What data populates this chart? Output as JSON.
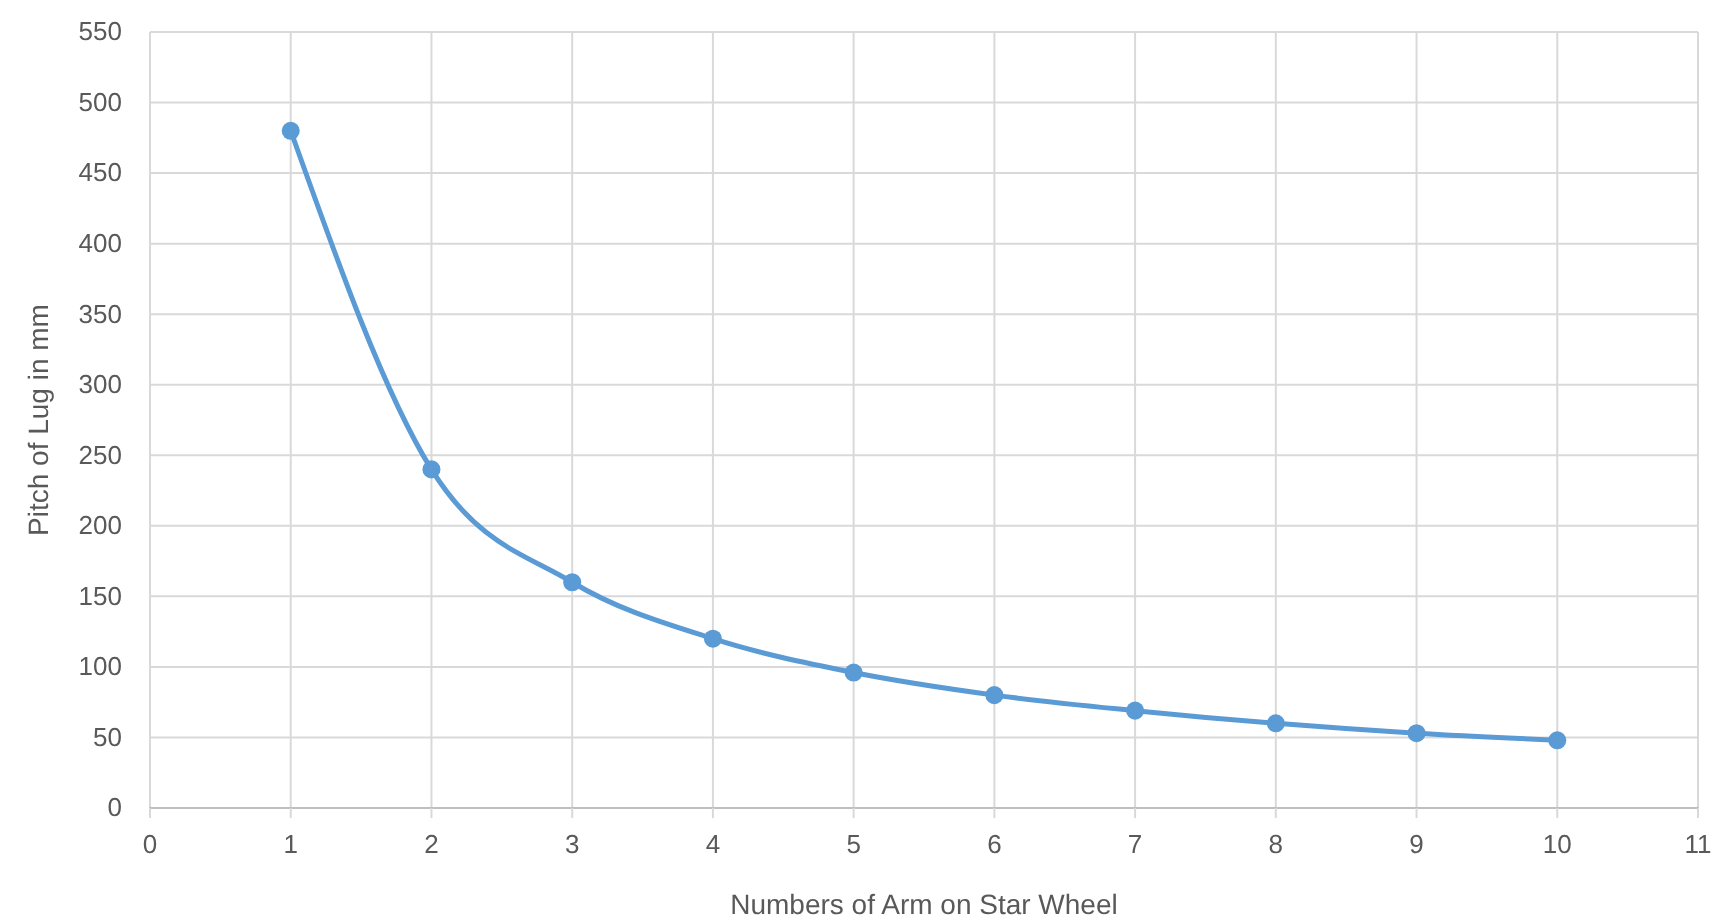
{
  "chart_data": {
    "type": "line",
    "xlabel": "Numbers of Arm on Star Wheel",
    "ylabel": "Pitch of Lug in mm",
    "x": [
      1,
      2,
      3,
      4,
      5,
      6,
      7,
      8,
      9,
      10
    ],
    "series": [
      {
        "color": "#5b9bd5",
        "values": [
          480,
          240,
          160,
          120,
          96,
          80,
          69,
          60,
          53,
          48
        ]
      }
    ],
    "xlim": [
      0,
      11
    ],
    "xticks": [
      0,
      1,
      2,
      3,
      4,
      5,
      6,
      7,
      8,
      9,
      10,
      11
    ],
    "ylim": [
      0,
      550
    ],
    "yticks": [
      0,
      50,
      100,
      150,
      200,
      250,
      300,
      350,
      400,
      450,
      500,
      550
    ],
    "grid": true,
    "marker": "circle"
  }
}
